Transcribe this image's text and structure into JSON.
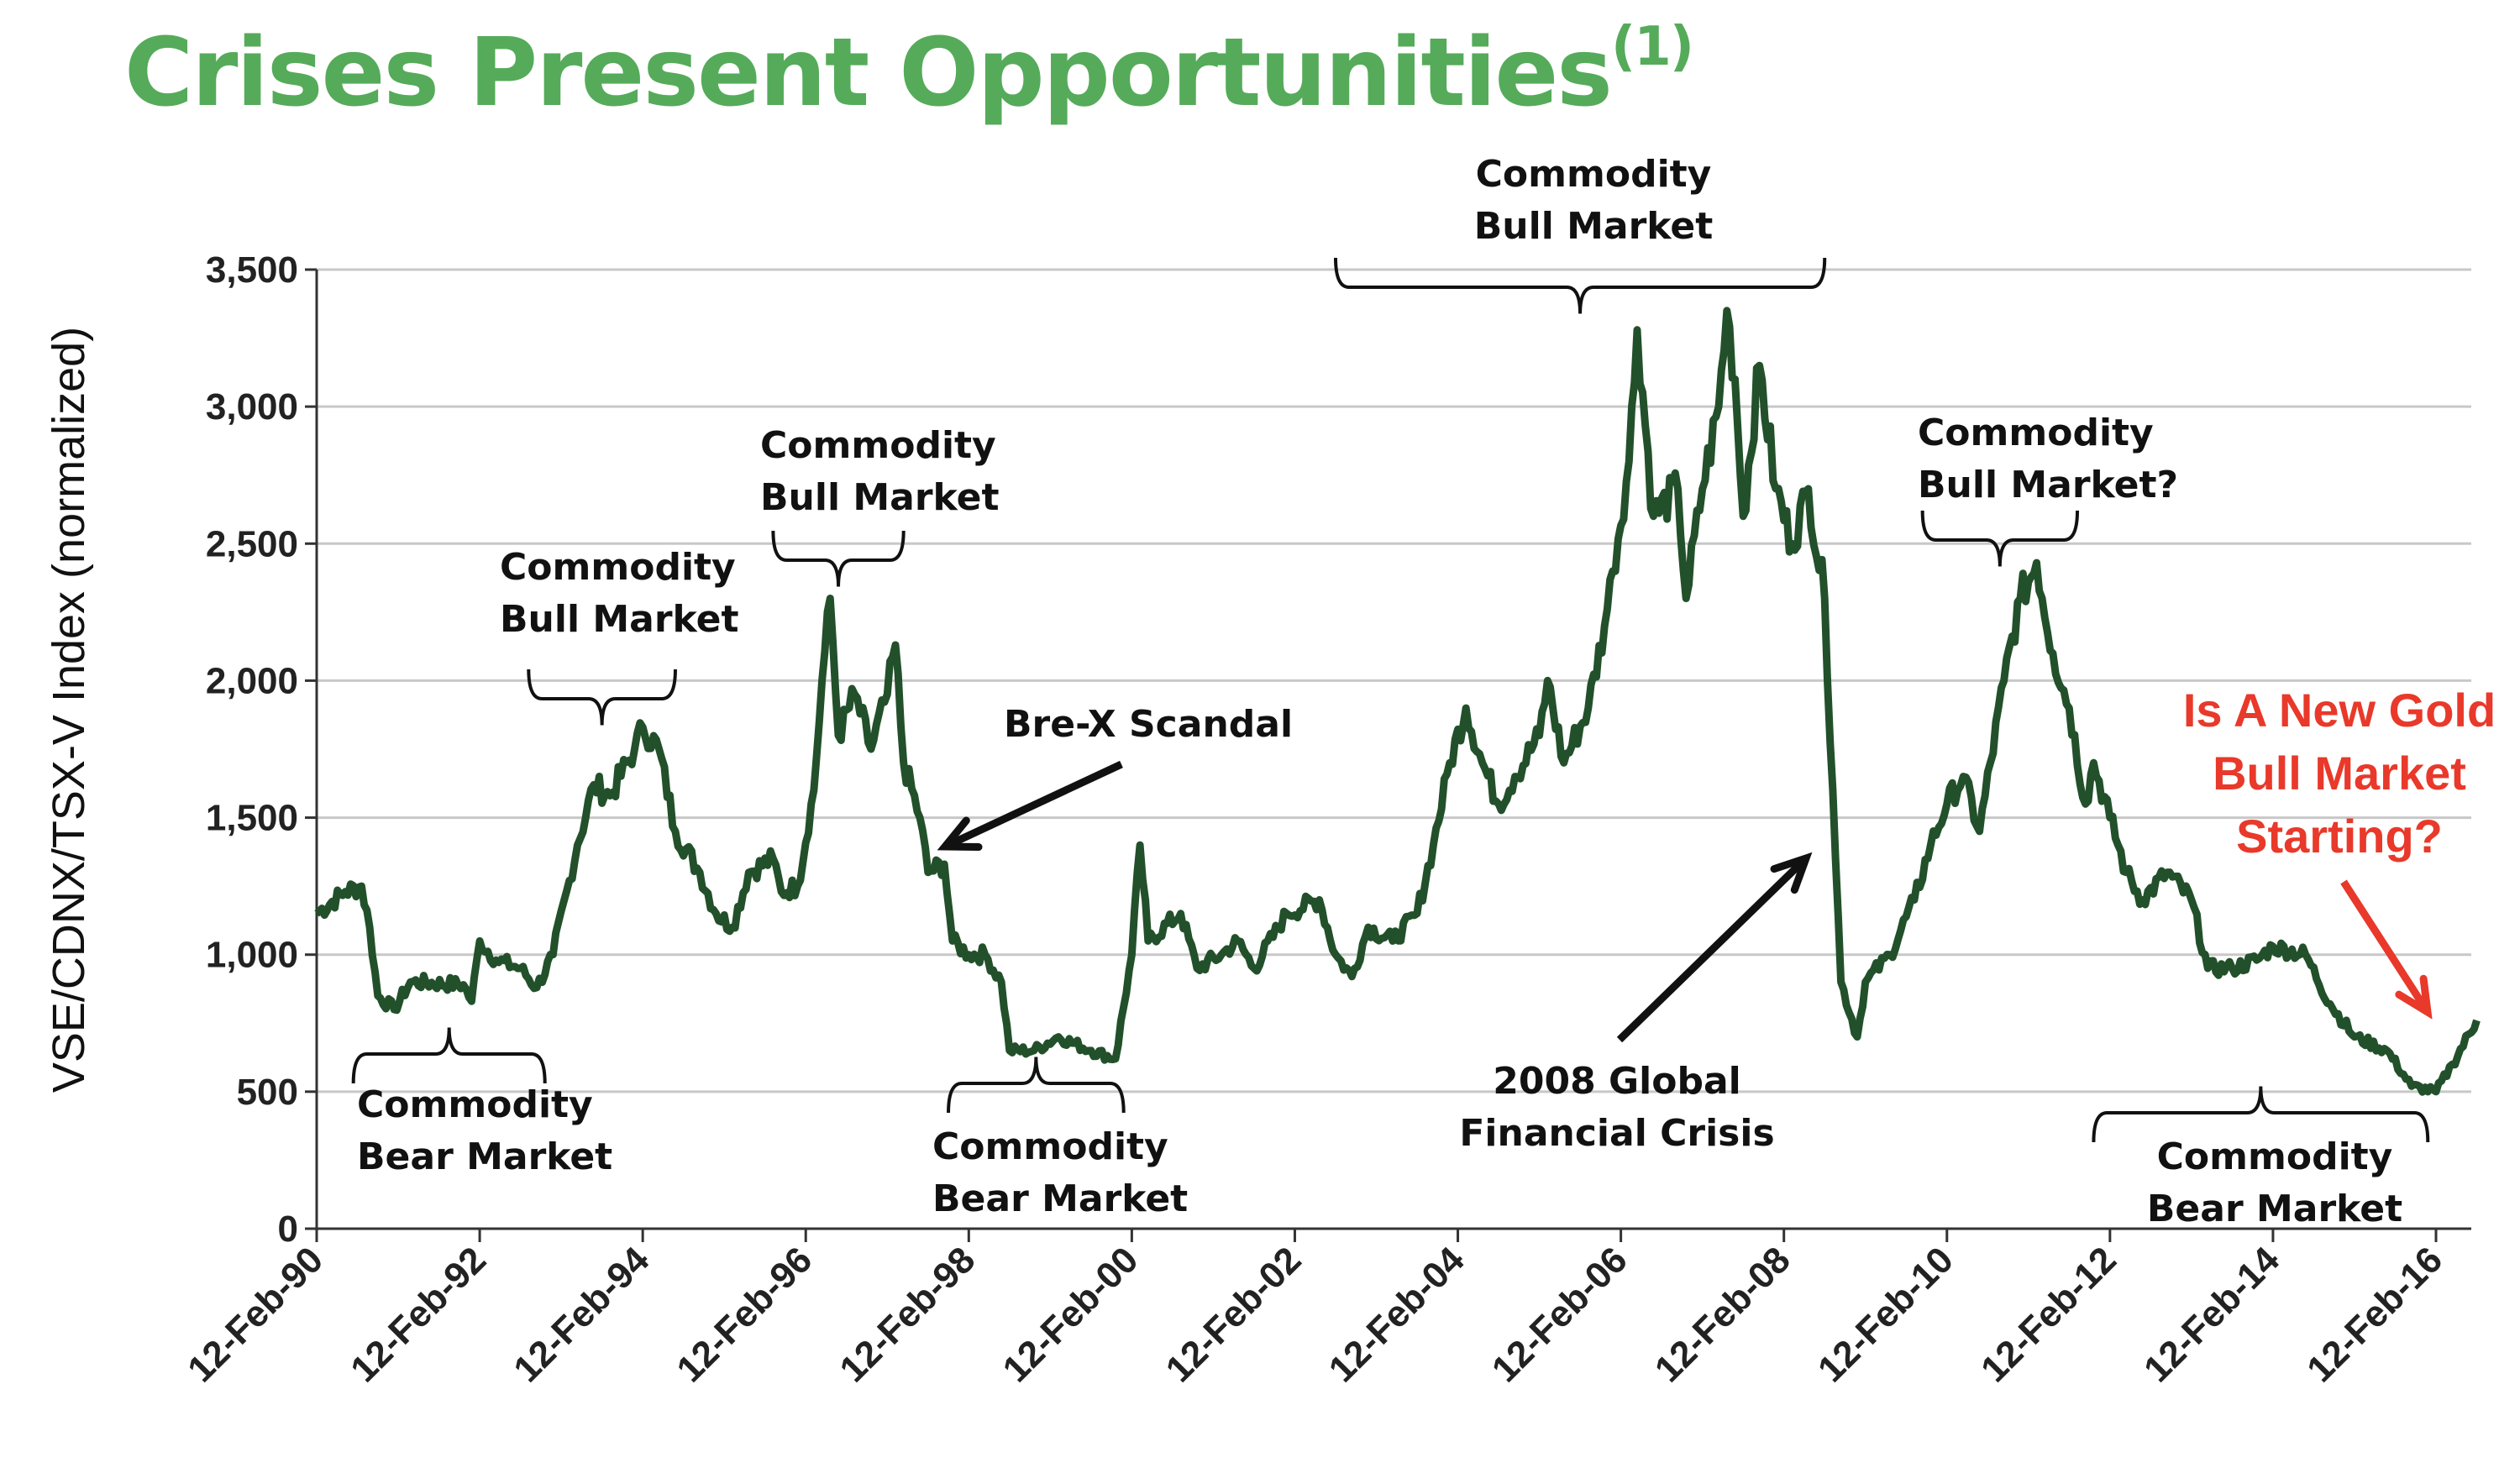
{
  "title": "Crises Present Opportunities",
  "title_footnote": "(1)",
  "chart_data": {
    "type": "line",
    "title": "Crises Present Opportunities(1)",
    "xlabel": "",
    "ylabel": "VSE/CDNX/TSX-V Index (normalized)",
    "ylim": [
      0,
      3500
    ],
    "xlim": [
      1990.1,
      2016.6
    ],
    "yticks": [
      0,
      500,
      1000,
      1500,
      2000,
      2500,
      3000,
      3500
    ],
    "ytick_labels": [
      "0",
      "500",
      "1,000",
      "1,500",
      "2,000",
      "2,500",
      "3,000",
      "3,500"
    ],
    "xticks": [
      1990.1,
      1992.1,
      1994.1,
      1996.1,
      1998.1,
      2000.1,
      2002.1,
      2004.1,
      2006.1,
      2008.1,
      2010.1,
      2012.1,
      2014.1,
      2016.1
    ],
    "xtick_labels": [
      "12-Feb-90",
      "12-Feb-92",
      "12-Feb-94",
      "12-Feb-96",
      "12-Feb-98",
      "12-Feb-00",
      "12-Feb-02",
      "12-Feb-04",
      "12-Feb-06",
      "12-Feb-08",
      "12-Feb-10",
      "12-Feb-12",
      "12-Feb-14",
      "12-Feb-16"
    ],
    "grid": true,
    "line_color": "#22502a",
    "series": [
      {
        "name": "VSE/CDNX/TSX-V Index",
        "x": [
          1990.1,
          1990.45,
          1990.65,
          1990.75,
          1990.85,
          1991.05,
          1991.25,
          1991.9,
          1992.0,
          1992.1,
          1992.3,
          1992.6,
          1992.8,
          1993.0,
          1993.3,
          1993.5,
          1993.7,
          1994.0,
          1994.1,
          1994.3,
          1994.5,
          1994.8,
          1995.0,
          1995.2,
          1995.4,
          1995.7,
          1995.8,
          1996.0,
          1996.2,
          1996.3,
          1996.4,
          1996.5,
          1996.7,
          1996.9,
          1997.1,
          1997.2,
          1997.3,
          1997.5,
          1997.6,
          1997.8,
          1997.9,
          1998.1,
          1998.3,
          1998.5,
          1998.6,
          1998.9,
          1999.2,
          1999.6,
          1999.9,
          2000.1,
          2000.2,
          2000.3,
          2000.7,
          2000.9,
          2001.2,
          2001.4,
          2001.6,
          2002.0,
          2002.4,
          2002.6,
          2002.8,
          2003.0,
          2003.3,
          2003.6,
          2003.8,
          2004.0,
          2004.2,
          2004.4,
          2004.6,
          2004.8,
          2005.1,
          2005.2,
          2005.4,
          2005.7,
          2005.9,
          2006.0,
          2006.2,
          2006.3,
          2006.5,
          2006.8,
          2006.9,
          2007.1,
          2007.3,
          2007.4,
          2007.5,
          2007.6,
          2007.8,
          2008.0,
          2008.2,
          2008.4,
          2008.6,
          2008.7,
          2008.8,
          2009.0,
          2009.1,
          2009.4,
          2009.7,
          2009.9,
          2010.1,
          2010.3,
          2010.5,
          2010.8,
          2011.0,
          2011.2,
          2011.4,
          2011.6,
          2011.8,
          2011.9,
          2012.1,
          2012.3,
          2012.5,
          2012.8,
          2013.1,
          2013.3,
          2013.6,
          2013.9,
          2014.1,
          2014.5,
          2014.8,
          2015.1,
          2015.5,
          2015.8,
          2016.1,
          2016.3,
          2016.6
        ],
        "values": [
          1150,
          1230,
          1250,
          1100,
          850,
          800,
          900,
          890,
          830,
          1050,
          980,
          950,
          880,
          1000,
          1400,
          1620,
          1580,
          1750,
          1830,
          1750,
          1450,
          1300,
          1150,
          1100,
          1300,
          1350,
          1230,
          1250,
          1600,
          2000,
          2300,
          1800,
          1950,
          1750,
          1950,
          2130,
          1700,
          1500,
          1300,
          1330,
          1050,
          1000,
          1000,
          900,
          650,
          650,
          700,
          650,
          620,
          1000,
          1400,
          1050,
          1150,
          950,
          1000,
          1050,
          950,
          1150,
          1200,
          1000,
          920,
          1100,
          1050,
          1150,
          1400,
          1700,
          1900,
          1700,
          1550,
          1650,
          1800,
          2000,
          1700,
          1900,
          2200,
          2400,
          2800,
          3280,
          2600,
          2700,
          2300,
          2700,
          3000,
          3350,
          3100,
          2600,
          3150,
          2700,
          2500,
          2700,
          2300,
          1600,
          900,
          700,
          900,
          1000,
          1200,
          1400,
          1550,
          1650,
          1450,
          2000,
          2300,
          2430,
          2100,
          1900,
          1550,
          1700,
          1500,
          1300,
          1200,
          1300,
          1200,
          950,
          950,
          980,
          1030,
          1000,
          820,
          700,
          650,
          520,
          500,
          600,
          760
        ]
      }
    ],
    "annotations": [
      {
        "lines": [
          "Commodity",
          "Bear Market"
        ],
        "span": [
          1990.55,
          1992.9
        ]
      },
      {
        "lines": [
          "Commodity",
          "Bull Market"
        ],
        "span": [
          1992.7,
          1994.5
        ]
      },
      {
        "lines": [
          "Commodity",
          "Bull Market"
        ],
        "span": [
          1995.7,
          1997.3
        ]
      },
      {
        "lines": [
          "Bre-X Scandal"
        ],
        "x": 1997.6
      },
      {
        "lines": [
          "Commodity",
          "Bear Market"
        ],
        "span": [
          1997.85,
          2000.0
        ]
      },
      {
        "lines": [
          "Commodity",
          "Bull Market"
        ],
        "span": [
          2002.6,
          2008.6
        ]
      },
      {
        "lines": [
          "2008 Global",
          "Financial Crisis"
        ],
        "x": 2008.4
      },
      {
        "lines": [
          "Commodity",
          "Bull Market?"
        ],
        "span": [
          2009.8,
          2011.7
        ]
      },
      {
        "lines": [
          "Commodity",
          "Bear Market"
        ],
        "span": [
          2011.9,
          2016.0
        ]
      },
      {
        "lines": [
          "Is A New Gold",
          "Bull Market",
          "Starting?"
        ],
        "color": "#e8392a",
        "x": 2016.0
      }
    ]
  }
}
